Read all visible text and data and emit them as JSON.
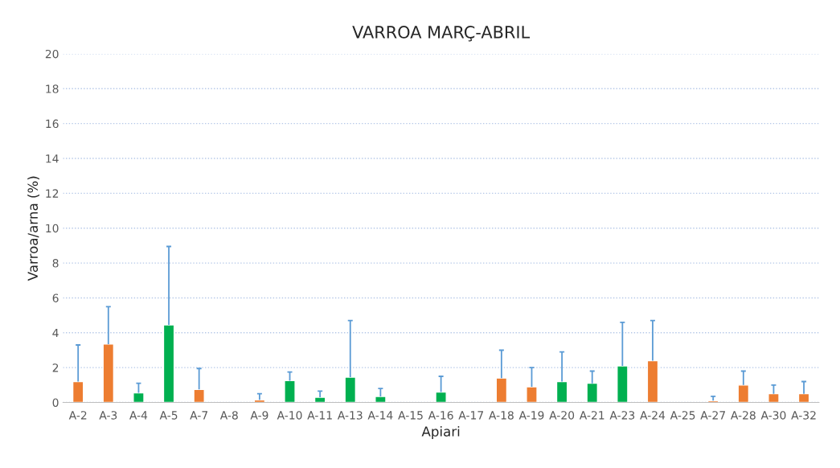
{
  "chart_data": {
    "type": "bar",
    "title": "VARROA MARÇ-ABRIL",
    "xlabel": "Apiari",
    "ylabel": "Varroa/arna (%)",
    "categories": [
      "A-2",
      "A-3",
      "A-4",
      "A-5",
      "A-7",
      "A-8",
      "A-9",
      "A-10",
      "A-11",
      "A-13",
      "A-14",
      "A-15",
      "A-16",
      "A-17",
      "A-18",
      "A-19",
      "A-20",
      "A-21",
      "A-23",
      "A-24",
      "A-25",
      "A-27",
      "A-28",
      "A-30",
      "A-32"
    ],
    "values": [
      1.2,
      3.35,
      0.55,
      4.45,
      0.75,
      null,
      0.15,
      1.25,
      0.3,
      1.45,
      0.35,
      null,
      0.6,
      null,
      1.4,
      0.9,
      1.2,
      1.1,
      2.1,
      2.4,
      null,
      0.1,
      1.0,
      0.5,
      0.5
    ],
    "colors": [
      "#ed7d31",
      "#ed7d31",
      "#00b050",
      "#00b050",
      "#ed7d31",
      null,
      "#ed7d31",
      "#00b050",
      "#00b050",
      "#00b050",
      "#00b050",
      null,
      "#00b050",
      null,
      "#ed7d31",
      "#ed7d31",
      "#00b050",
      "#00b050",
      "#00b050",
      "#ed7d31",
      null,
      "#ed7d31",
      "#ed7d31",
      "#ed7d31",
      "#ed7d31"
    ],
    "errors": [
      [
        1.2,
        3.3
      ],
      [
        3.35,
        5.5
      ],
      [
        0.55,
        1.1
      ],
      [
        4.45,
        8.95
      ],
      [
        0.75,
        1.95
      ],
      null,
      [
        0.15,
        0.5
      ],
      [
        1.25,
        1.75
      ],
      [
        0.3,
        0.65
      ],
      [
        1.45,
        4.7
      ],
      [
        0.35,
        0.8
      ],
      null,
      [
        0.6,
        1.5
      ],
      null,
      [
        1.4,
        3.0
      ],
      [
        0.9,
        2.0
      ],
      [
        1.2,
        2.9
      ],
      [
        1.1,
        1.8
      ],
      [
        2.1,
        4.6
      ],
      [
        2.4,
        4.7
      ],
      null,
      [
        0.1,
        0.35
      ],
      [
        1.0,
        1.8
      ],
      [
        0.5,
        1.0
      ],
      [
        0.5,
        1.2
      ]
    ],
    "ylim": [
      0,
      20
    ],
    "yticks": [
      0,
      2,
      4,
      6,
      8,
      10,
      12,
      14,
      16,
      18,
      20
    ],
    "grid": "y"
  }
}
